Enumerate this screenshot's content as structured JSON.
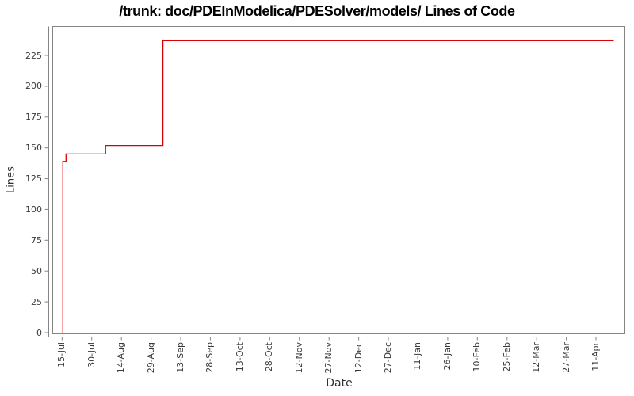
{
  "colors": {
    "line": "#dd0000",
    "axis": "#848484",
    "tick_label": "#3a3a3a",
    "title": "#000000",
    "background": "#ffffff"
  },
  "chart_data": {
    "type": "line",
    "subtype": "step",
    "title": "/trunk: doc/PDEInModelica/PDESolver/models/ Lines of Code",
    "xlabel": "Date",
    "ylabel": "Lines",
    "y_ticks": [
      0,
      25,
      50,
      75,
      100,
      125,
      150,
      175,
      200,
      225
    ],
    "ylim": [
      0,
      249
    ],
    "x_tick_labels": [
      "15-Jul",
      "30-Jul",
      "14-Aug",
      "29-Aug",
      "13-Sep",
      "28-Sep",
      "13-Oct",
      "28-Oct",
      "12-Nov",
      "27-Nov",
      "12-Dec",
      "27-Dec",
      "11-Jan",
      "26-Jan",
      "10-Feb",
      "25-Feb",
      "12-Mar",
      "27-Mar",
      "11-Apr"
    ],
    "x_tick_interval_days": 15,
    "xlim_days": [
      -4.7,
      284.8
    ],
    "grid": false,
    "legend": "none",
    "series": [
      {
        "name": "lines-of-code",
        "color": "#dd0000",
        "step_points": [
          {
            "date": "15-Jul",
            "day": 0.4,
            "value": 0
          },
          {
            "date": "15-Jul",
            "day": 0.4,
            "value": 139
          },
          {
            "date": "17-Jul",
            "day": 2.0,
            "value": 139
          },
          {
            "date": "17-Jul",
            "day": 2.0,
            "value": 145
          },
          {
            "date": "06-Aug",
            "day": 22.0,
            "value": 145
          },
          {
            "date": "06-Aug",
            "day": 22.0,
            "value": 152
          },
          {
            "date": "04-Sep",
            "day": 51.0,
            "value": 152
          },
          {
            "date": "04-Sep",
            "day": 51.0,
            "value": 237
          },
          {
            "date": "20-Apr",
            "day": 279.0,
            "value": 237
          }
        ]
      }
    ]
  }
}
